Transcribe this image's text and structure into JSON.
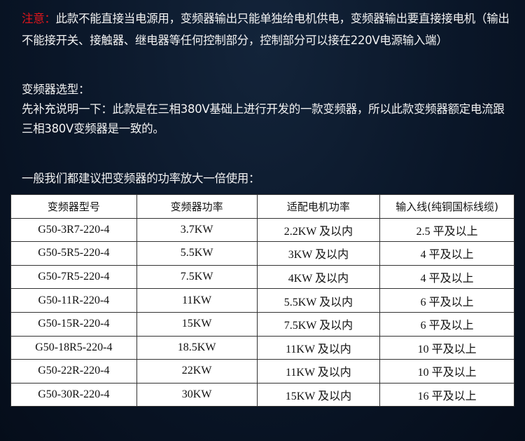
{
  "notice": {
    "label": "注意：",
    "line1": "此款不能直接当电源用，变频器输出只能单独给电机供电，变频器输出要直接接电机（输出",
    "line2": "不能接开关、接触器、继电器等任何控制部分，控制部分可以接在220V电源输入端）"
  },
  "selection": {
    "title": "变频器选型：",
    "line1": "先补充说明一下：此款是在三相380V基础上进行开发的一款变频器，所以此款变频器额定电流跟",
    "line2": "三相380V变频器是一致的。"
  },
  "recommendation": "一般我们都建议把变频器的功率放大一倍使用：",
  "table": {
    "headers": [
      "变频器型号",
      "变频器功率",
      "适配电机功率",
      "输入线(纯铜国标线缆)"
    ],
    "rows": [
      {
        "model": "G50-3R7-220-4",
        "power": "3.7KW",
        "motor": "2.2KW 及以内",
        "cable": "2.5 平及以上"
      },
      {
        "model": "G50-5R5-220-4",
        "power": "5.5KW",
        "motor": "3KW 及以内",
        "cable": "4 平及以上"
      },
      {
        "model": "G50-7R5-220-4",
        "power": "7.5KW",
        "motor": "4KW 及以内",
        "cable": "4 平及以上"
      },
      {
        "model": "G50-11R-220-4",
        "power": "11KW",
        "motor": "5.5KW 及以内",
        "cable": "6 平及以上"
      },
      {
        "model": "G50-15R-220-4",
        "power": "15KW",
        "motor": "7.5KW 及以内",
        "cable": "6 平及以上"
      },
      {
        "model": "G50-18R5-220-4",
        "power": "18.5KW",
        "motor": "11KW 及以内",
        "cable": "10 平及以上"
      },
      {
        "model": "G50-22R-220-4",
        "power": "22KW",
        "motor": "11KW 及以内",
        "cable": "10 平及以上"
      },
      {
        "model": "G50-30R-220-4",
        "power": "30KW",
        "motor": "15KW 及以内",
        "cable": "16 平及以上"
      }
    ]
  }
}
